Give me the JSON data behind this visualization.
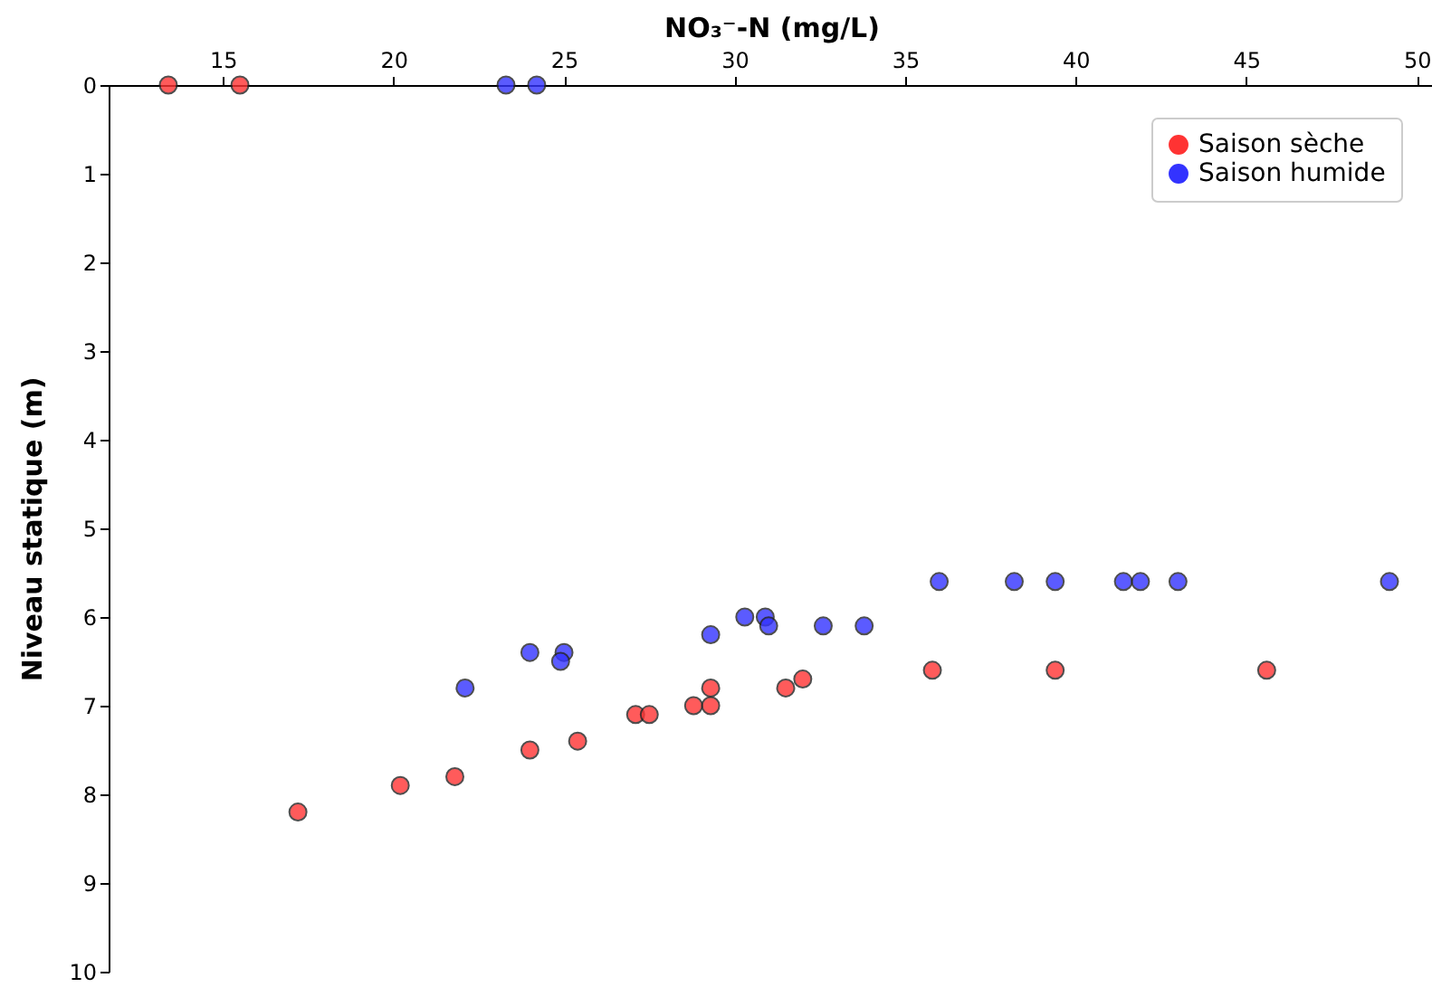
{
  "chart_data": {
    "type": "scatter",
    "xlabel": "NO₃⁻-N (mg/L)",
    "ylabel": "Niveau statique (m)",
    "xlim": [
      11.65,
      50.5
    ],
    "xticks": [
      15,
      20,
      25,
      30,
      35,
      40,
      45,
      50
    ],
    "ylim": [
      10,
      0
    ],
    "yticks": [
      0,
      1,
      2,
      3,
      4,
      5,
      6,
      7,
      8,
      9,
      10
    ],
    "legend": "top right",
    "marker": "circle",
    "grid": false,
    "series": [
      {
        "name": "Saison sèche",
        "color": "#ff3333",
        "x": [
          13.4,
          15.5,
          17.2,
          20.2,
          21.8,
          24.0,
          25.4,
          27.1,
          27.5,
          28.8,
          29.3,
          29.3,
          31.5,
          32.0,
          35.8,
          39.4,
          45.6
        ],
        "values": [
          0,
          0,
          8.2,
          7.9,
          7.8,
          7.5,
          7.4,
          7.1,
          7.1,
          7.0,
          7.0,
          6.8,
          6.8,
          6.7,
          6.6,
          6.6,
          6.6
        ]
      },
      {
        "name": "Saison humide",
        "color": "#3333ff",
        "x": [
          23.3,
          24.2,
          22.1,
          24.0,
          25.0,
          24.9,
          29.3,
          30.3,
          30.9,
          31.0,
          32.6,
          33.8,
          36.0,
          38.2,
          39.4,
          41.4,
          41.9,
          43.0,
          49.2
        ],
        "values": [
          0,
          0,
          6.8,
          6.4,
          6.4,
          6.5,
          6.2,
          6.0,
          6.0,
          6.1,
          6.1,
          6.1,
          5.6,
          5.6,
          5.6,
          5.6,
          5.6,
          5.6,
          5.6
        ]
      }
    ]
  }
}
